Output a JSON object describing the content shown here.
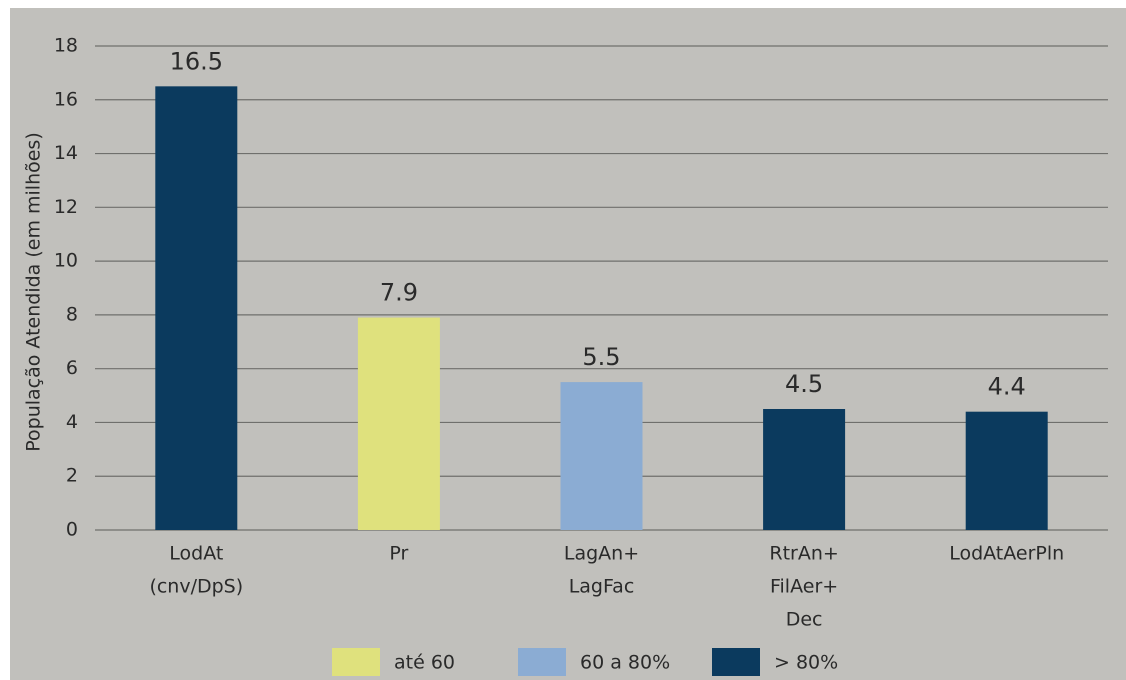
{
  "chart_data": {
    "type": "bar",
    "y_label": "População Atendida (em milhões)",
    "categories": [
      [
        "LodAt",
        "(cnv/DpS)"
      ],
      [
        "Pr"
      ],
      [
        "LagAn+",
        "LagFac"
      ],
      [
        "RtrAn+",
        "FilAer+",
        "Dec"
      ],
      [
        "LodAtAerPln"
      ]
    ],
    "values": [
      16.5,
      7.9,
      5.5,
      4.5,
      4.4
    ],
    "colors": [
      "#0b3a5e",
      "#dfe17d",
      "#8bacd3",
      "#0b3a5e",
      "#0b3a5e"
    ],
    "ylim": [
      0,
      18
    ],
    "yticks": [
      0,
      2,
      4,
      6,
      8,
      10,
      12,
      14,
      16,
      18
    ],
    "grid": true,
    "legend": [
      {
        "name": "até 60",
        "color": "#dfe17d"
      },
      {
        "name": "60 a 80%",
        "color": "#8bacd3"
      },
      {
        "name": "> 80%",
        "color": "#0b3a5e"
      }
    ]
  }
}
